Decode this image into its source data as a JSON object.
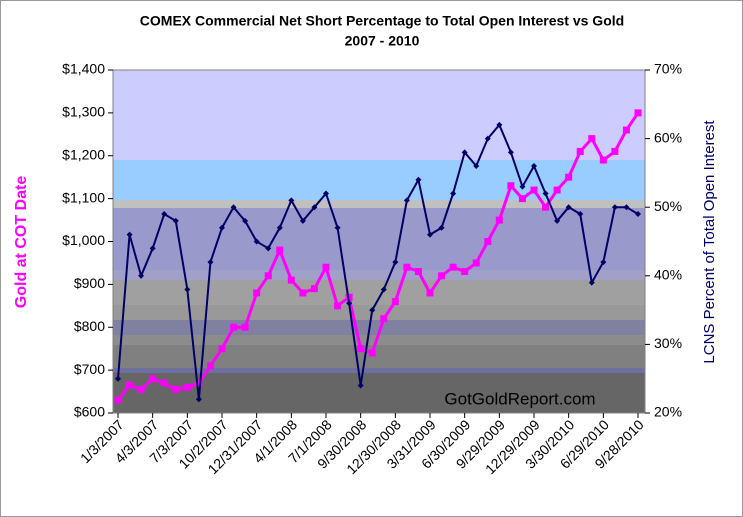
{
  "chart_data": {
    "type": "line",
    "title": "COMEX Commercial Net Short Percentage to Total Open Interest vs Gold",
    "subtitle": "2007 - 2010",
    "y_label": "Gold at COT Date",
    "y2_label": "LCNS Percent of Total Open Interest",
    "annotation": "GotGoldReport.com",
    "categories": [
      "1/3/2007",
      null,
      null,
      "4/3/2007",
      null,
      null,
      "7/3/2007",
      null,
      null,
      "10/2/2007",
      null,
      null,
      "12/31/2007",
      null,
      null,
      "4/1/2008",
      null,
      null,
      "7/1/2008",
      null,
      null,
      "9/30/2008",
      null,
      null,
      "12/30/2008",
      null,
      null,
      "3/31/2009",
      null,
      null,
      "6/30/2009",
      null,
      null,
      "9/29/2009",
      null,
      null,
      "12/29/2009",
      null,
      null,
      "3/30/2010",
      null,
      null,
      "6/29/2010",
      null,
      null,
      "9/28/2010"
    ],
    "series": [
      {
        "color": "#ff00ff",
        "axis": "y",
        "marker": "square",
        "values": [
          630,
          665,
          655,
          680,
          670,
          655,
          660,
          670,
          710,
          750,
          800,
          800,
          880,
          920,
          980,
          910,
          880,
          890,
          940,
          850,
          870,
          750,
          740,
          820,
          860,
          940,
          930,
          880,
          920,
          940,
          930,
          950,
          1000,
          1050,
          1130,
          1100,
          1120,
          1080,
          1120,
          1150,
          1210,
          1240,
          1190,
          1210,
          1260,
          1300
        ]
      },
      {
        "color": "#000066",
        "axis": "y2",
        "marker": "diamond",
        "values": [
          25,
          46,
          40,
          44,
          49,
          48,
          38,
          22,
          42,
          47,
          50,
          48,
          45,
          44,
          47,
          51,
          48,
          50,
          52,
          47,
          36,
          24,
          35,
          38,
          42,
          51,
          54,
          46,
          47,
          52,
          58,
          56,
          60,
          62,
          58,
          53,
          56,
          52,
          48,
          50,
          49,
          39,
          42,
          50,
          50,
          49
        ]
      }
    ],
    "ylim": [
      600,
      1400
    ],
    "yticks": [
      {
        "value": 600,
        "label": "$600"
      },
      {
        "value": 700,
        "label": "$700"
      },
      {
        "value": 800,
        "label": "$800"
      },
      {
        "value": 900,
        "label": "$900"
      },
      {
        "value": 1000,
        "label": "$1,000"
      },
      {
        "value": 1100,
        "label": "$1,100"
      },
      {
        "value": 1200,
        "label": "$1,200"
      },
      {
        "value": 1300,
        "label": "$1,300"
      },
      {
        "value": 1400,
        "label": "$1,400"
      }
    ],
    "y2lim": [
      20,
      70
    ],
    "y2ticks": [
      {
        "value": 20,
        "label": "20%"
      },
      {
        "value": 30,
        "label": "30%"
      },
      {
        "value": 40,
        "label": "40%"
      },
      {
        "value": 50,
        "label": "50%"
      },
      {
        "value": 60,
        "label": "60%"
      },
      {
        "value": 70,
        "label": "70%"
      }
    ],
    "y_label_color": "#ff00ff",
    "y2_label_color": "#000066"
  }
}
